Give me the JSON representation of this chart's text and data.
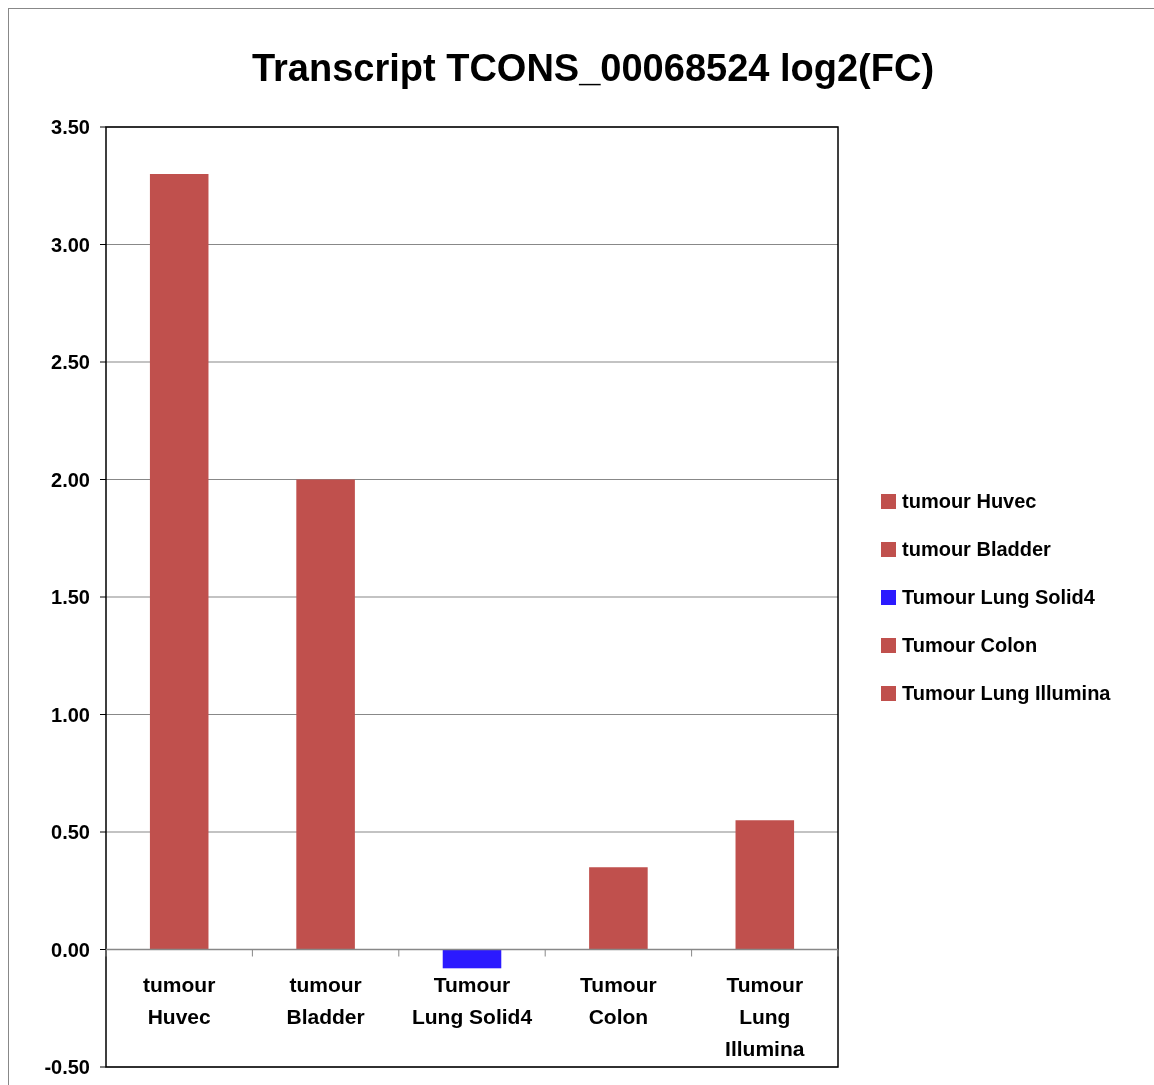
{
  "chart_data": {
    "type": "bar",
    "title": "Transcript TCONS_00068524 log2(FC)",
    "categories": [
      "tumour Huvec",
      "tumour Bladder",
      "Tumour Lung Solid4",
      "Tumour Colon",
      "Tumour Lung Illumina"
    ],
    "series": [
      {
        "name": "tumour Huvec",
        "color": "#c0504d",
        "values": [
          3.3,
          null,
          null,
          null,
          null
        ]
      },
      {
        "name": "tumour Bladder",
        "color": "#c0504d",
        "values": [
          null,
          2.0,
          null,
          null,
          null
        ]
      },
      {
        "name": "Tumour Lung Solid4",
        "color": "#2b1aff",
        "values": [
          null,
          null,
          -0.08,
          null,
          null
        ]
      },
      {
        "name": "Tumour Colon",
        "color": "#c0504d",
        "values": [
          null,
          null,
          null,
          0.35,
          null
        ]
      },
      {
        "name": "Tumour Lung Illumina",
        "color": "#c0504d",
        "values": [
          null,
          null,
          null,
          null,
          0.55
        ]
      }
    ],
    "ylim": [
      -0.5,
      3.5
    ],
    "yticks": [
      {
        "value": -0.5,
        "label": "-0.50"
      },
      {
        "value": 0,
        "label": "0.00"
      },
      {
        "value": 0.5,
        "label": "0.50"
      },
      {
        "value": 1,
        "label": "1.00"
      },
      {
        "value": 1.5,
        "label": "1.50"
      },
      {
        "value": 2,
        "label": "2.00"
      },
      {
        "value": 2.5,
        "label": "2.50"
      },
      {
        "value": 3,
        "label": "3.00"
      },
      {
        "value": 3.5,
        "label": "3.50"
      }
    ],
    "grid": "y",
    "legend": "right"
  }
}
